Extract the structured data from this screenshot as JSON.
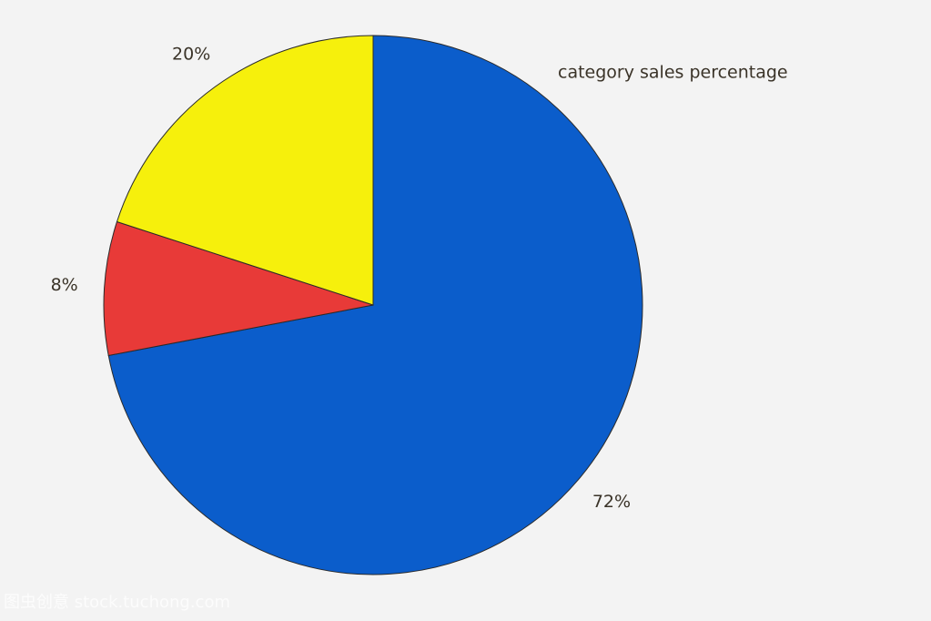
{
  "chart_data": {
    "type": "pie",
    "title": "category sales percentage",
    "values": [
      72,
      8,
      20
    ],
    "value_labels": [
      "72%",
      "8%",
      "20%"
    ],
    "colors": [
      "#0b5dcb",
      "#e83a38",
      "#f6f00c"
    ],
    "watermark": "图虫创意 stock.tuchong.com"
  }
}
